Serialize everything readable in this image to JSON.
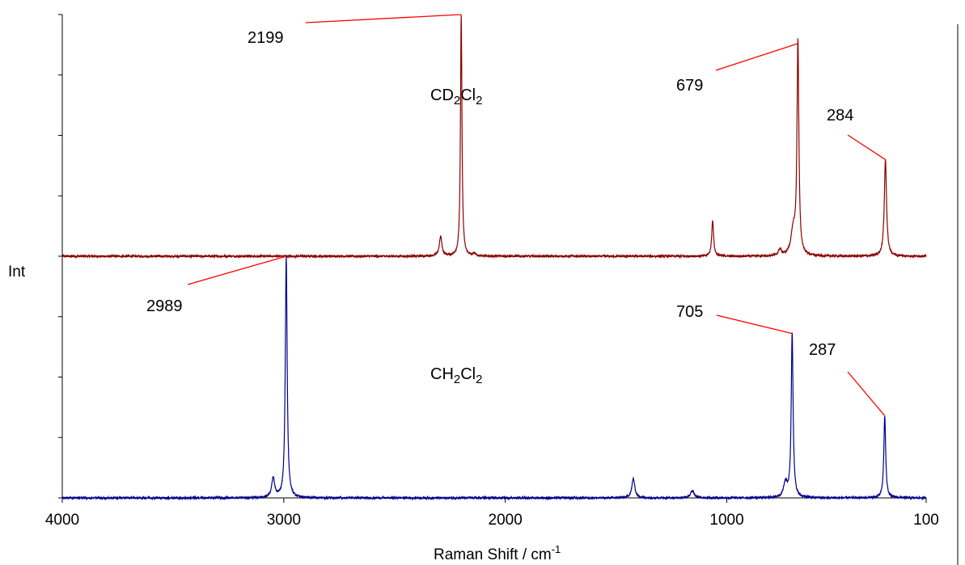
{
  "chart_data": {
    "type": "line",
    "xlabel": "Raman Shift / cm",
    "xlabel_superscript": "-1",
    "ylabel": "Int",
    "xlim": [
      4000,
      100
    ],
    "x_ticks": [
      "4000",
      "3000",
      "2000",
      "1000",
      "100"
    ],
    "x_tick_values": [
      4000,
      3000,
      2000,
      1000,
      100
    ],
    "y_axis_ticks": "unlabeled",
    "grid": false,
    "legend": "none",
    "baselines": {
      "CD2Cl2": 0.5,
      "CH2Cl2": 0.0
    },
    "compound_labels": [
      {
        "base": "CD",
        "sub1": "2",
        "mid": "Cl",
        "sub2": "2",
        "series": "CD2Cl2"
      },
      {
        "base": "CH",
        "sub1": "2",
        "mid": "Cl",
        "sub2": "2",
        "series": "CH2Cl2"
      }
    ],
    "series": [
      {
        "id": "CD2Cl2",
        "color": "#8B0000",
        "peaks": [
          {
            "x": 2292,
            "y": 0.54,
            "w": 7
          },
          {
            "x": 2199,
            "y": 1.0,
            "w": 4
          },
          {
            "x": 2140,
            "y": 0.505,
            "w": 6
          },
          {
            "x": 1064,
            "y": 0.575,
            "w": 5
          },
          {
            "x": 760,
            "y": 0.513,
            "w": 8
          },
          {
            "x": 700,
            "y": 0.55,
            "w": 12
          },
          {
            "x": 679,
            "y": 0.94,
            "w": 5
          },
          {
            "x": 284,
            "y": 0.7,
            "w": 6
          }
        ]
      },
      {
        "id": "CH2Cl2",
        "color": "#00008B",
        "peaks": [
          {
            "x": 3048,
            "y": 0.04,
            "w": 8
          },
          {
            "x": 2989,
            "y": 0.5,
            "w": 5
          },
          {
            "x": 1422,
            "y": 0.04,
            "w": 8
          },
          {
            "x": 1155,
            "y": 0.015,
            "w": 10
          },
          {
            "x": 735,
            "y": 0.03,
            "w": 10
          },
          {
            "x": 705,
            "y": 0.34,
            "w": 5
          },
          {
            "x": 287,
            "y": 0.17,
            "w": 5
          }
        ]
      }
    ],
    "annotations": [
      {
        "text": "2199",
        "series": "CD2Cl2",
        "x": 2199
      },
      {
        "text": "679",
        "series": "CD2Cl2",
        "x": 679
      },
      {
        "text": "284",
        "series": "CD2Cl2",
        "x": 284
      },
      {
        "text": "2989",
        "series": "CH2Cl2",
        "x": 2989
      },
      {
        "text": "705",
        "series": "CH2Cl2",
        "x": 705
      },
      {
        "text": "287",
        "series": "CH2Cl2",
        "x": 287
      }
    ],
    "annotation_color": "#FF0000"
  }
}
